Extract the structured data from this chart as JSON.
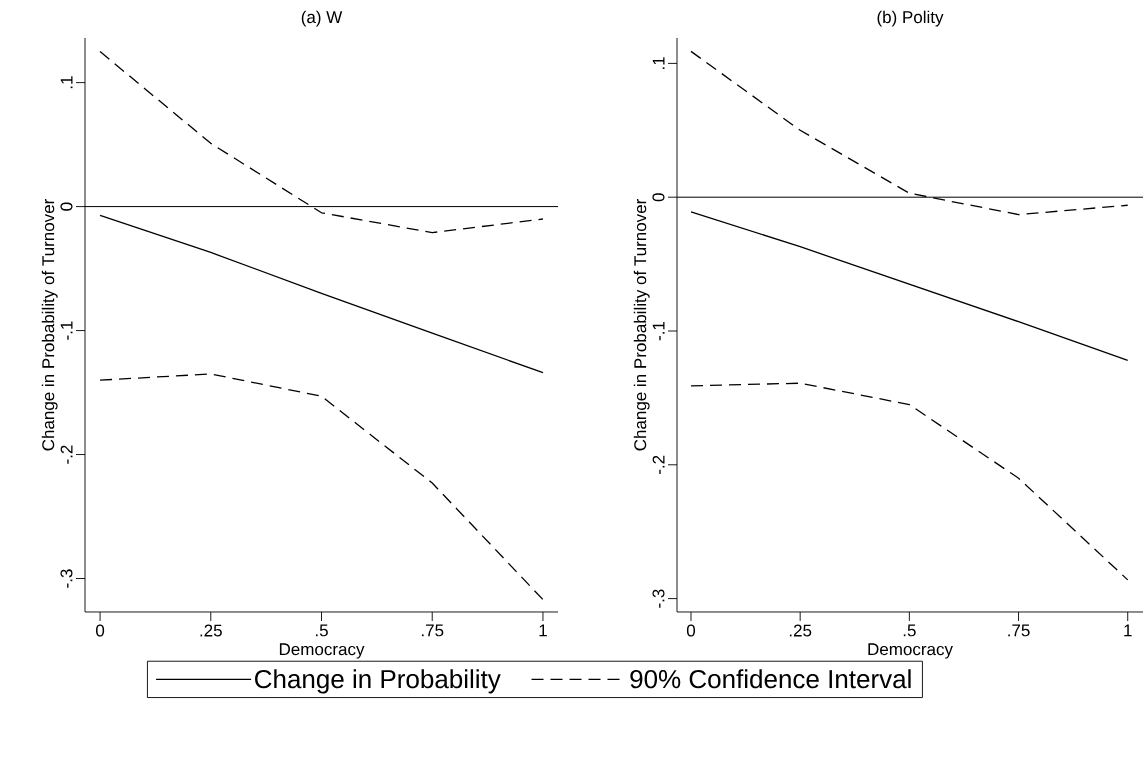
{
  "chart_data": [
    {
      "type": "line",
      "title": "(a) W",
      "xlabel": "Democracy",
      "ylabel": "Change in Probability of Turnover",
      "x": [
        0,
        0.25,
        0.5,
        0.75,
        1
      ],
      "series": [
        {
          "name": "Change in Probability",
          "color": "#000000",
          "line_style": "solid",
          "values": [
            -0.007,
            -0.037,
            -0.07,
            -0.102,
            -0.134
          ]
        },
        {
          "name": "90% Confidence Interval",
          "color": "#000000",
          "line_style": "dashed",
          "values": [
            0.125,
            0.051,
            -0.005,
            -0.021,
            -0.01
          ]
        },
        {
          "color": "#000000",
          "line_style": "dashed",
          "values": [
            -0.14,
            -0.135,
            -0.153,
            -0.223,
            -0.317
          ]
        }
      ],
      "xlim": [
        -0.034,
        1.034
      ],
      "ylim": [
        -0.327,
        0.136
      ],
      "xticks": [
        0,
        {
          "value": 0.25,
          "label": ".25"
        },
        {
          "value": 0.5,
          "label": ".5"
        },
        {
          "value": 0.75,
          "label": ".75"
        },
        1
      ],
      "yticks": [
        {
          "value": -0.3,
          "label": "-.3"
        },
        {
          "value": -0.2,
          "label": "-.2"
        },
        {
          "value": -0.1,
          "label": "-.1"
        },
        0,
        {
          "value": 0.1,
          "label": ".1"
        }
      ],
      "ref_lines": [
        {
          "axis": "y",
          "value": 0
        }
      ],
      "grid": false,
      "legend": "bottom"
    },
    {
      "type": "line",
      "title": "(b) Polity",
      "xlabel": "Democracy",
      "ylabel": "Change in Probability of Turnover",
      "x": [
        0,
        0.25,
        0.5,
        0.75,
        1
      ],
      "series": [
        {
          "color": "#000000",
          "line_style": "solid",
          "values": [
            -0.011,
            -0.037,
            -0.065,
            -0.093,
            -0.122
          ]
        },
        {
          "color": "#000000",
          "line_style": "dashed",
          "values": [
            0.109,
            0.05,
            0.003,
            -0.013,
            -0.006
          ]
        },
        {
          "color": "#000000",
          "line_style": "dashed",
          "values": [
            -0.141,
            -0.139,
            -0.155,
            -0.21,
            -0.286
          ]
        }
      ],
      "xlim": [
        -0.032,
        1.035
      ],
      "ylim": [
        -0.31,
        0.119
      ],
      "xticks": [
        0,
        {
          "value": 0.25,
          "label": ".25"
        },
        {
          "value": 0.5,
          "label": ".5"
        },
        {
          "value": 0.75,
          "label": ".75"
        },
        1
      ],
      "yticks": [
        {
          "value": -0.3,
          "label": "-.3"
        },
        {
          "value": -0.2,
          "label": "-.2"
        },
        {
          "value": -0.1,
          "label": "-.1"
        },
        0,
        {
          "value": 0.1,
          "label": ".1"
        }
      ],
      "ref_lines": [
        {
          "axis": "y",
          "value": 0
        }
      ],
      "grid": false
    }
  ]
}
